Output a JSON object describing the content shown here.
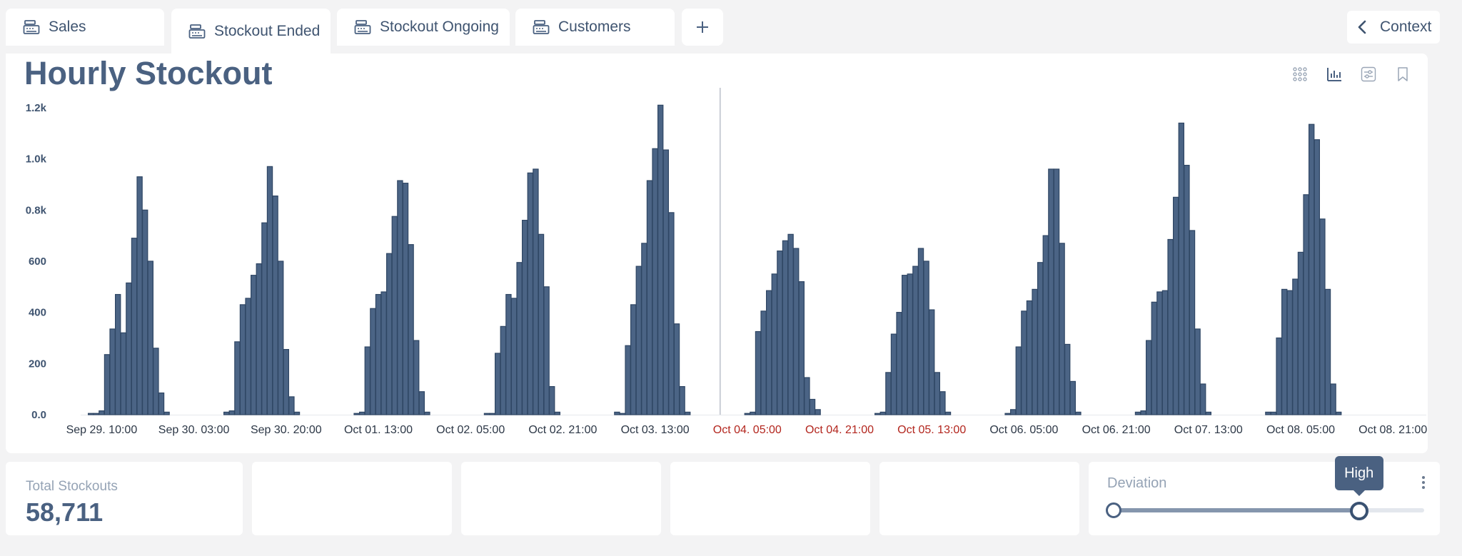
{
  "tabs": [
    {
      "label": "Sales",
      "icon": "cash-register-icon",
      "active": false
    },
    {
      "label": "Stockout Ended",
      "icon": "cash-register-icon",
      "active": true
    },
    {
      "label": "Stockout Ongoing",
      "icon": "cash-register-icon",
      "active": false
    },
    {
      "label": "Customers",
      "icon": "cash-register-icon",
      "active": false
    }
  ],
  "add_tab_icon": "plus-icon",
  "context_button": {
    "label": "Context",
    "icon": "chevron-left-icon"
  },
  "panel": {
    "title": "Hourly Stockout",
    "tools": [
      "grid-icon",
      "bar-chart-icon",
      "filter-settings-icon",
      "bookmark-icon"
    ]
  },
  "chart_data": {
    "type": "bar",
    "title": "Hourly Stockout",
    "xlabel": "",
    "ylabel": "",
    "ylim": [
      0,
      1250
    ],
    "y_ticks": [
      "0.0",
      "200",
      "400",
      "600",
      "0.8k",
      "1.0k",
      "1.2k"
    ],
    "y_tick_values": [
      0,
      200,
      400,
      600,
      800,
      1000,
      1200
    ],
    "x_ticks": [
      {
        "label": "Sep 29. 10:00",
        "index": 3,
        "highlight": false
      },
      {
        "label": "Sep 30. 03:00",
        "index": 20,
        "highlight": false
      },
      {
        "label": "Sep 30. 20:00",
        "index": 37,
        "highlight": false
      },
      {
        "label": "Oct 01. 13:00",
        "index": 54,
        "highlight": false
      },
      {
        "label": "Oct 02. 05:00",
        "index": 71,
        "highlight": false
      },
      {
        "label": "Oct 02. 21:00",
        "index": 88,
        "highlight": false
      },
      {
        "label": "Oct 03. 13:00",
        "index": 105,
        "highlight": false
      },
      {
        "label": "Oct 04. 05:00",
        "index": 122,
        "highlight": true
      },
      {
        "label": "Oct 04. 21:00",
        "index": 139,
        "highlight": true
      },
      {
        "label": "Oct 05. 13:00",
        "index": 156,
        "highlight": true
      },
      {
        "label": "Oct 06. 05:00",
        "index": 173,
        "highlight": false
      },
      {
        "label": "Oct 06. 21:00",
        "index": 190,
        "highlight": false
      },
      {
        "label": "Oct 07. 13:00",
        "index": 207,
        "highlight": false
      },
      {
        "label": "Oct 08. 05:00",
        "index": 224,
        "highlight": false
      },
      {
        "label": "Oct 08. 21:00",
        "index": 241,
        "highlight": false
      }
    ],
    "marker_index": 117,
    "values": [
      0,
      5,
      5,
      15,
      235,
      335,
      470,
      320,
      515,
      690,
      930,
      800,
      600,
      260,
      85,
      10,
      0,
      0,
      0,
      0,
      0,
      0,
      0,
      0,
      0,
      0,
      10,
      15,
      285,
      430,
      455,
      545,
      590,
      750,
      970,
      855,
      600,
      255,
      70,
      10,
      0,
      0,
      0,
      0,
      0,
      0,
      0,
      0,
      0,
      0,
      5,
      10,
      265,
      415,
      470,
      480,
      630,
      775,
      915,
      905,
      665,
      290,
      90,
      10,
      0,
      0,
      0,
      0,
      0,
      0,
      0,
      0,
      0,
      0,
      5,
      5,
      240,
      345,
      470,
      455,
      595,
      760,
      945,
      960,
      705,
      500,
      110,
      10,
      0,
      0,
      0,
      0,
      0,
      0,
      0,
      0,
      0,
      0,
      10,
      5,
      270,
      430,
      580,
      670,
      915,
      1040,
      1210,
      1035,
      790,
      355,
      110,
      10,
      0,
      0,
      0,
      0,
      0,
      0,
      0,
      0,
      0,
      0,
      5,
      10,
      325,
      405,
      485,
      550,
      640,
      680,
      705,
      650,
      520,
      145,
      60,
      20,
      0,
      0,
      0,
      0,
      0,
      0,
      0,
      0,
      0,
      0,
      5,
      10,
      165,
      315,
      400,
      545,
      550,
      580,
      650,
      600,
      410,
      165,
      90,
      10,
      0,
      0,
      0,
      0,
      0,
      0,
      0,
      0,
      0,
      0,
      5,
      20,
      265,
      405,
      445,
      490,
      595,
      700,
      960,
      960,
      670,
      275,
      130,
      10,
      0,
      0,
      0,
      0,
      0,
      0,
      0,
      0,
      0,
      0,
      10,
      15,
      290,
      440,
      480,
      485,
      685,
      850,
      1140,
      975,
      720,
      335,
      120,
      10,
      0,
      0,
      0,
      0,
      0,
      0,
      0,
      0,
      0,
      0,
      10,
      10,
      300,
      490,
      485,
      530,
      635,
      860,
      1135,
      1075,
      765,
      490,
      120,
      10,
      0,
      0
    ]
  },
  "kpis": [
    {
      "label": "Total Stockouts",
      "value": "58,711"
    },
    {
      "label": "",
      "value": ""
    },
    {
      "label": "",
      "value": ""
    },
    {
      "label": "",
      "value": ""
    },
    {
      "label": "",
      "value": ""
    }
  ],
  "deviation": {
    "label": "Deviation",
    "tooltip": "High",
    "level_fraction": 0.79,
    "menu_icon": "kebab-menu-icon"
  },
  "colors": {
    "bar_fill": "#4b6485",
    "bar_stroke": "#2f4664",
    "highlight_tick": "#b3261e",
    "title": "#4a6181"
  }
}
